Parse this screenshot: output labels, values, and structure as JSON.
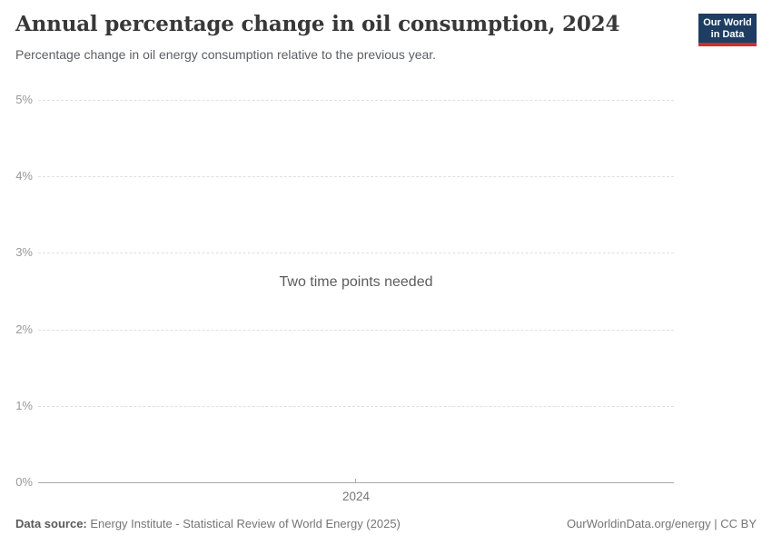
{
  "header": {
    "title": "Annual percentage change in oil consumption, 2024",
    "subtitle": "Percentage change in oil energy consumption relative to the previous year.",
    "logo": {
      "line1": "Our World",
      "line2": "in Data",
      "bg_color": "#1d3d63",
      "accent_color": "#c9312b",
      "text_color": "#ffffff"
    }
  },
  "chart_data": {
    "type": "line",
    "title": "Annual percentage change in oil consumption, 2024",
    "subtitle": "Percentage change in oil energy consumption relative to the previous year.",
    "xlabel": "",
    "ylabel": "",
    "ylim": [
      0,
      5
    ],
    "ytick_labels": [
      "0%",
      "1%",
      "2%",
      "3%",
      "4%",
      "5%"
    ],
    "xtick_labels": [
      "2024"
    ],
    "grid": "horizontal-dashed",
    "legend": "none",
    "series": [],
    "empty_state_message": "Two time points needed"
  },
  "footer": {
    "source_label": "Data source:",
    "source_text": " Energy Institute - Statistical Review of World Energy (2025)",
    "attribution": "OurWorldinData.org/energy | CC BY"
  }
}
